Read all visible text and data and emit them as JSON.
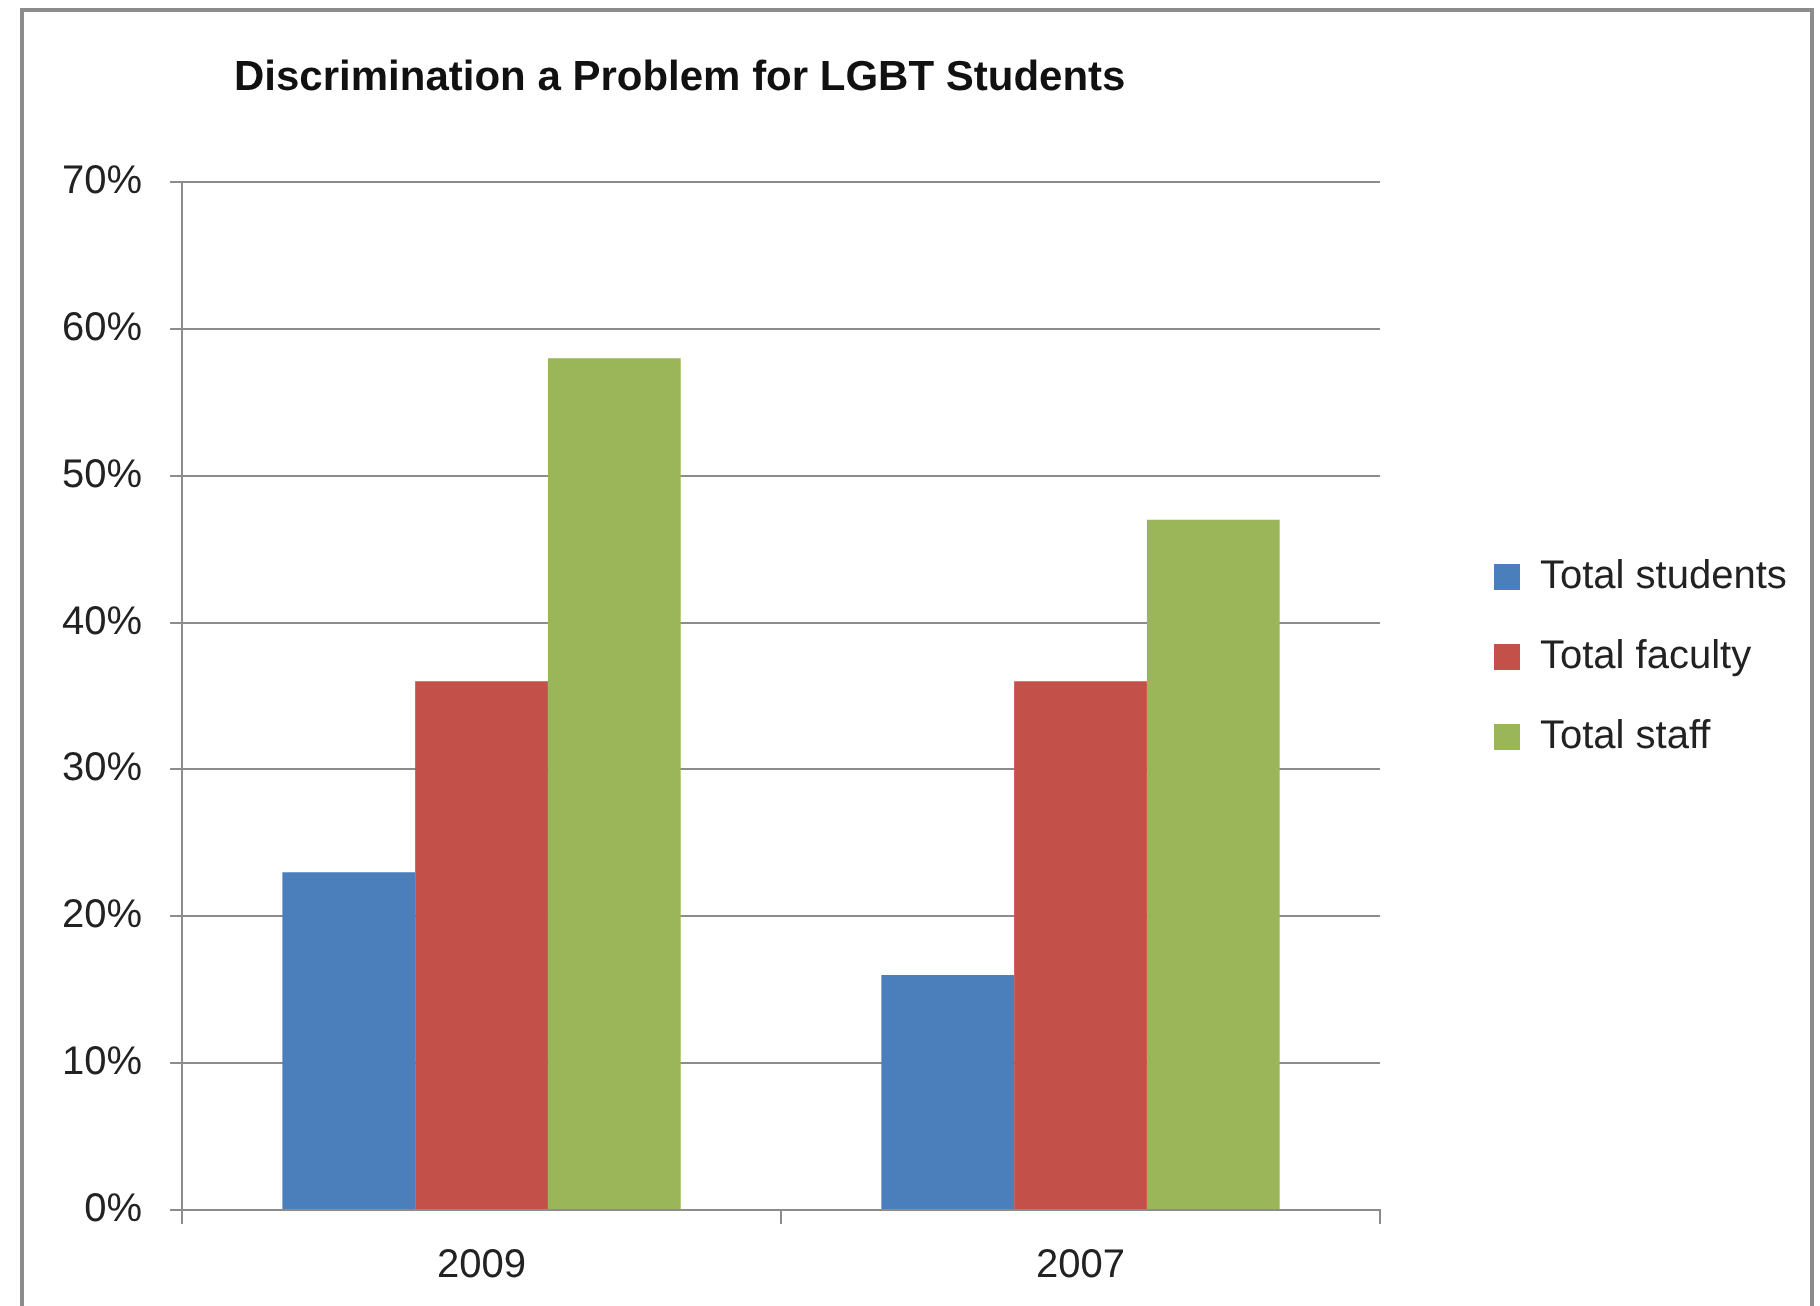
{
  "chart_data": {
    "type": "bar",
    "title": "Discrimination a Problem for LGBT Students",
    "categories": [
      "2009",
      "2007"
    ],
    "series": [
      {
        "name": "Total students",
        "color": "#4a7fbc",
        "values": [
          23,
          16
        ]
      },
      {
        "name": "Total faculty",
        "color": "#c4504a",
        "values": [
          36,
          36
        ]
      },
      {
        "name": "Total staff",
        "color": "#9bb658",
        "values": [
          58,
          47
        ]
      }
    ],
    "ylim": [
      0,
      70
    ],
    "yticks": [
      {
        "value": 0,
        "label": "0%"
      },
      {
        "value": 10,
        "label": "10%"
      },
      {
        "value": 20,
        "label": "20%"
      },
      {
        "value": 30,
        "label": "30%"
      },
      {
        "value": 40,
        "label": "40%"
      },
      {
        "value": 50,
        "label": "50%"
      },
      {
        "value": 60,
        "label": "60%"
      },
      {
        "value": 70,
        "label": "70%"
      }
    ],
    "grid": "y",
    "legend": "right"
  }
}
